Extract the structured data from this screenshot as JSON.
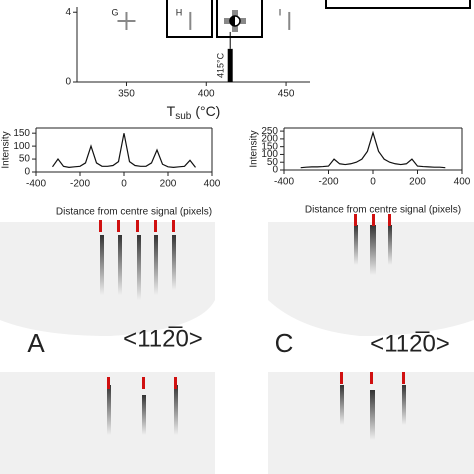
{
  "chart_data": [
    {
      "type": "scatter",
      "xlabel": "T",
      "xlabel_sub": "sub",
      "xlabel_unit": "(°C)",
      "xlim": [
        319,
        465
      ],
      "xticks": [
        350,
        400,
        450
      ],
      "ylim": [
        0,
        4.3
      ],
      "yticks": [
        0,
        4
      ],
      "points": [
        {
          "x": 350,
          "y": 3.5,
          "label": "G",
          "marker": "cross",
          "color": "#888888"
        },
        {
          "x": 390,
          "y": 3.5,
          "label": "H",
          "marker": "stick",
          "color": "#888888"
        },
        {
          "x": 418,
          "y": 3.5,
          "marker": "circle",
          "color": "#888888"
        },
        {
          "x": 452,
          "y": 3.5,
          "label": "I",
          "marker": "stick",
          "color": "#888888"
        }
      ],
      "bar": {
        "x": 415,
        "value": 1.9,
        "label": "415°C",
        "color": "#000000"
      }
    },
    {
      "type": "line",
      "ylabel": "Intensity",
      "xlabel": "Distance from centre signal (pixels)",
      "xlim": [
        -400,
        400
      ],
      "xticks": [
        -400,
        -200,
        0,
        200,
        400
      ],
      "ylim": [
        0,
        170
      ],
      "yticks": [
        0,
        50,
        100,
        150
      ],
      "x": [
        -325,
        -300,
        -275,
        -250,
        -225,
        -200,
        -175,
        -150,
        -125,
        -100,
        -75,
        -50,
        -25,
        0,
        25,
        50,
        75,
        100,
        125,
        150,
        175,
        200,
        225,
        250,
        275,
        300,
        325
      ],
      "series": [
        {
          "color": "#111111",
          "values": [
            20,
            50,
            22,
            18,
            20,
            22,
            35,
            100,
            35,
            22,
            22,
            25,
            40,
            150,
            40,
            25,
            22,
            22,
            35,
            85,
            30,
            20,
            18,
            20,
            22,
            45,
            18
          ]
        }
      ]
    },
    {
      "type": "line",
      "ylabel": "Intensity",
      "xlabel": "Distance from centre signal (pixels)",
      "xlim": [
        -400,
        400
      ],
      "xticks": [
        -400,
        -200,
        0,
        200,
        400
      ],
      "ylim": [
        0,
        270
      ],
      "yticks": [
        0,
        50,
        100,
        150,
        200,
        250
      ],
      "x": [
        -325,
        -300,
        -275,
        -250,
        -225,
        -200,
        -175,
        -150,
        -125,
        -100,
        -75,
        -50,
        -25,
        0,
        25,
        50,
        75,
        100,
        125,
        150,
        175,
        200,
        225,
        250,
        275,
        300,
        325
      ],
      "series": [
        {
          "color": "#111111",
          "values": [
            15,
            18,
            20,
            20,
            22,
            25,
            70,
            40,
            35,
            40,
            50,
            70,
            120,
            240,
            120,
            70,
            50,
            40,
            35,
            40,
            70,
            25,
            22,
            20,
            18,
            18,
            15
          ]
        }
      ]
    }
  ],
  "panels": [
    {
      "label": "A",
      "direction": "<112̅0>"
    },
    {
      "label": "C",
      "direction": "<112̅0>"
    }
  ]
}
